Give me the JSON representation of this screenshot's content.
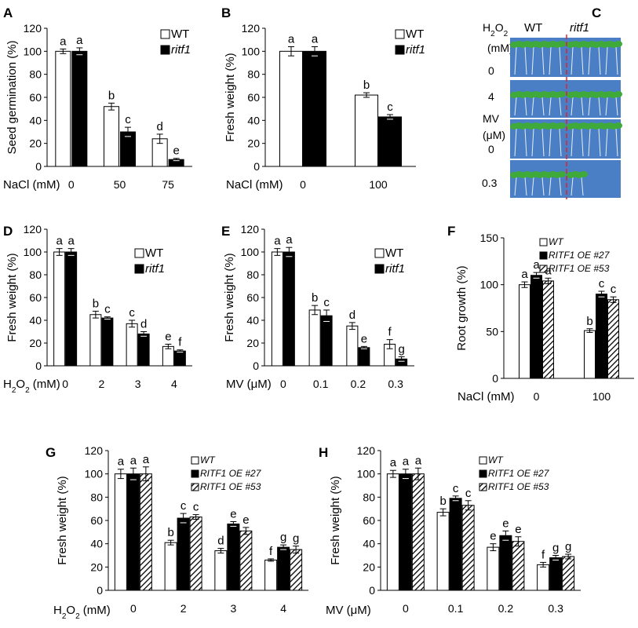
{
  "figure": {
    "photo_panel": {
      "letter": "C",
      "col_labels": [
        "WT",
        "ritf1"
      ],
      "treatments": [
        {
          "label_lines": [
            "H",
            "2",
            "O",
            "2"
          ],
          "unit": "(mM)",
          "levels": [
            "0",
            "4"
          ]
        },
        {
          "label": "MV",
          "unit": "(μM)",
          "levels": [
            "0",
            "0.3"
          ]
        }
      ],
      "colors": {
        "plate": "#4a7fc6",
        "plant": "#3faa3a",
        "root": "#e9eef6",
        "divider": "#e0202a"
      }
    }
  },
  "chart_data": [
    {
      "type": "bar",
      "letter": "A",
      "ylabel": "Seed germination (%)",
      "xlabel": "NaCl (mM)",
      "categories": [
        "0",
        "50",
        "75"
      ],
      "ylim": [
        0,
        120
      ],
      "yticks": [
        0,
        20,
        40,
        60,
        80,
        100,
        120
      ],
      "legend_position": "top-right",
      "series": [
        {
          "name": "WT",
          "fill": "white",
          "values": [
            100,
            52,
            24
          ],
          "errors": [
            2,
            3,
            4
          ],
          "letters": [
            "a",
            "b",
            "d"
          ]
        },
        {
          "name": "ritf1",
          "fill": "black",
          "values": [
            100,
            30,
            6
          ],
          "errors": [
            3,
            4,
            1
          ],
          "letters": [
            "a",
            "c",
            "e"
          ]
        }
      ]
    },
    {
      "type": "bar",
      "letter": "B",
      "ylabel": "Fresh weight (%)",
      "xlabel": "NaCl (mM)",
      "categories": [
        "0",
        "100"
      ],
      "ylim": [
        0,
        120
      ],
      "yticks": [
        0,
        20,
        40,
        60,
        80,
        100,
        120
      ],
      "legend_position": "top-right",
      "series": [
        {
          "name": "WT",
          "fill": "white",
          "values": [
            100,
            62
          ],
          "errors": [
            4,
            2
          ],
          "letters": [
            "a",
            "b"
          ]
        },
        {
          "name": "ritf1",
          "fill": "black",
          "values": [
            100,
            43
          ],
          "errors": [
            4,
            2
          ],
          "letters": [
            "a",
            "c"
          ]
        }
      ]
    },
    {
      "type": "bar",
      "letter": "D",
      "ylabel": "Fresh weight (%)",
      "xlabel": "H2O2 (mM)",
      "categories": [
        "0",
        "2",
        "3",
        "4"
      ],
      "ylim": [
        0,
        120
      ],
      "yticks": [
        0,
        20,
        40,
        60,
        80,
        100,
        120
      ],
      "legend_position": "top-right",
      "series": [
        {
          "name": "WT",
          "fill": "white",
          "values": [
            100,
            45,
            37,
            17
          ],
          "errors": [
            3,
            3,
            3,
            2
          ],
          "letters": [
            "a",
            "b",
            "c",
            "e"
          ]
        },
        {
          "name": "ritf1",
          "fill": "black",
          "values": [
            100,
            42,
            28,
            13
          ],
          "errors": [
            3,
            1,
            2,
            1
          ],
          "letters": [
            "a",
            "c",
            "d",
            "f"
          ]
        }
      ]
    },
    {
      "type": "bar",
      "letter": "E",
      "ylabel": "Fresh weight (%)",
      "xlabel": "MV (μM)",
      "categories": [
        "0",
        "0.1",
        "0.2",
        "0.3"
      ],
      "ylim": [
        0,
        120
      ],
      "yticks": [
        0,
        20,
        40,
        60,
        80,
        100,
        120
      ],
      "legend_position": "top-right",
      "series": [
        {
          "name": "WT",
          "fill": "white",
          "values": [
            100,
            49,
            35,
            19
          ],
          "errors": [
            3,
            4,
            3,
            4
          ],
          "letters": [
            "a",
            "b",
            "d",
            "f"
          ]
        },
        {
          "name": "ritf1",
          "fill": "black",
          "values": [
            100,
            44,
            16,
            6
          ],
          "errors": [
            4,
            5,
            1,
            2
          ],
          "letters": [
            "a",
            "c",
            "e",
            "g"
          ]
        }
      ]
    },
    {
      "type": "bar",
      "letter": "F",
      "ylabel": "Root growth (%)",
      "xlabel": "NaCl (mM)",
      "categories": [
        "0",
        "100"
      ],
      "ylim": [
        0,
        150
      ],
      "yticks": [
        0,
        50,
        100,
        150
      ],
      "legend_position": "top-left",
      "series": [
        {
          "name": "WT",
          "fill": "white",
          "values": [
            100,
            51
          ],
          "errors": [
            3,
            2
          ],
          "letters": [
            "a",
            "b"
          ]
        },
        {
          "name": "RITF1 OE #27",
          "fill": "black",
          "values": [
            110,
            90
          ],
          "errors": [
            3,
            3
          ],
          "letters": [
            "a",
            "c"
          ]
        },
        {
          "name": "RITF1 OE #53",
          "fill": "hatch",
          "values": [
            104,
            84
          ],
          "errors": [
            3,
            3
          ],
          "letters": [
            "a",
            "c"
          ]
        }
      ]
    },
    {
      "type": "bar",
      "letter": "G",
      "ylabel": "Fresh weight (%)",
      "xlabel": "H2O2 (mM)",
      "categories": [
        "0",
        "2",
        "3",
        "4"
      ],
      "ylim": [
        0,
        120
      ],
      "yticks": [
        0,
        20,
        40,
        60,
        80,
        100,
        120
      ],
      "legend_position": "top-right",
      "series": [
        {
          "name": "WT",
          "fill": "white",
          "values": [
            100,
            41,
            34,
            26
          ],
          "errors": [
            4,
            2,
            2,
            1
          ],
          "letters": [
            "a",
            "b",
            "d",
            "f"
          ]
        },
        {
          "name": "RITF1 OE #27",
          "fill": "black",
          "values": [
            100,
            62,
            57,
            37
          ],
          "errors": [
            5,
            4,
            2,
            2
          ],
          "letters": [
            "a",
            "c",
            "e",
            "g"
          ]
        },
        {
          "name": "RITF1 OE #53",
          "fill": "hatch",
          "values": [
            100,
            63,
            51,
            35
          ],
          "errors": [
            6,
            2,
            3,
            3
          ],
          "letters": [
            "a",
            "c",
            "e",
            "g"
          ]
        }
      ]
    },
    {
      "type": "bar",
      "letter": "H",
      "ylabel": "Fresh weight (%)",
      "xlabel": "MV (μM)",
      "categories": [
        "0",
        "0.1",
        "0.2",
        "0.3"
      ],
      "ylim": [
        0,
        120
      ],
      "yticks": [
        0,
        20,
        40,
        60,
        80,
        100,
        120
      ],
      "legend_position": "top-right",
      "series": [
        {
          "name": "WT",
          "fill": "white",
          "values": [
            100,
            67,
            37,
            22
          ],
          "errors": [
            3,
            3,
            3,
            2
          ],
          "letters": [
            "a",
            "b",
            "e",
            "f"
          ]
        },
        {
          "name": "RITF1 OE #27",
          "fill": "black",
          "values": [
            100,
            79,
            47,
            28
          ],
          "errors": [
            4,
            2,
            4,
            2
          ],
          "letters": [
            "a",
            "c",
            "e",
            "g"
          ]
        },
        {
          "name": "RITF1 OE #53",
          "fill": "hatch",
          "values": [
            100,
            73,
            42,
            29
          ],
          "errors": [
            5,
            4,
            4,
            2
          ],
          "letters": [
            "a",
            "c",
            "e",
            "g"
          ]
        }
      ]
    }
  ]
}
